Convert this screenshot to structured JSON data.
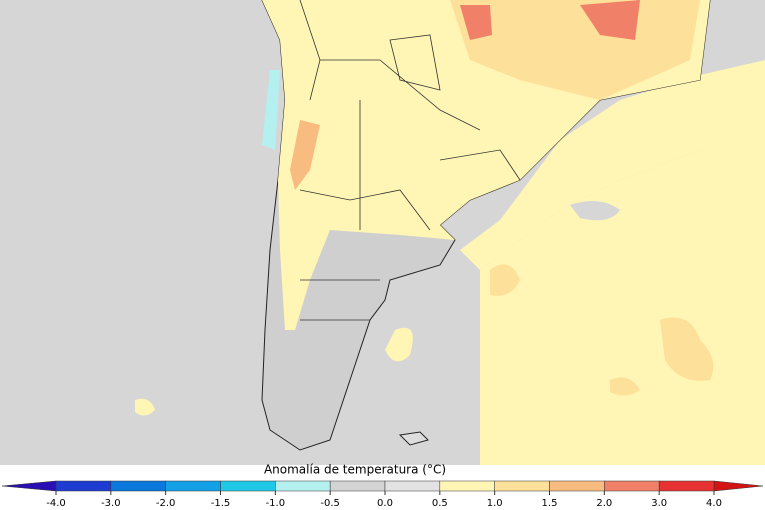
{
  "colorbar": {
    "title": "Anomalía de temperatura (°C)",
    "ticks": [
      {
        "value": -4,
        "label": "-4.0"
      },
      {
        "value": -3,
        "label": "-3.0"
      },
      {
        "value": -2,
        "label": "-2.0"
      },
      {
        "value": -1.5,
        "label": "-1.5"
      },
      {
        "value": -1,
        "label": "-1.0"
      },
      {
        "value": -0.5,
        "label": "-0.5"
      },
      {
        "value": 0,
        "label": "0.0"
      },
      {
        "value": 0.5,
        "label": "0.5"
      },
      {
        "value": 1,
        "label": "1.0"
      },
      {
        "value": 1.5,
        "label": "1.5"
      },
      {
        "value": 2,
        "label": "2.0"
      },
      {
        "value": 3,
        "label": "3.0"
      },
      {
        "value": 4,
        "label": "4.0"
      }
    ],
    "colors": [
      "#1e3cd2",
      "#0a78dc",
      "#14a0e6",
      "#1ec8e6",
      "#b4f0f0",
      "#d4d4d4",
      "#e2e2e2",
      "#fff5b4",
      "#fde09a",
      "#f8bc80",
      "#f08068",
      "#e63232"
    ],
    "under_color": "#2a10b4",
    "over_color": "#d21414"
  }
}
